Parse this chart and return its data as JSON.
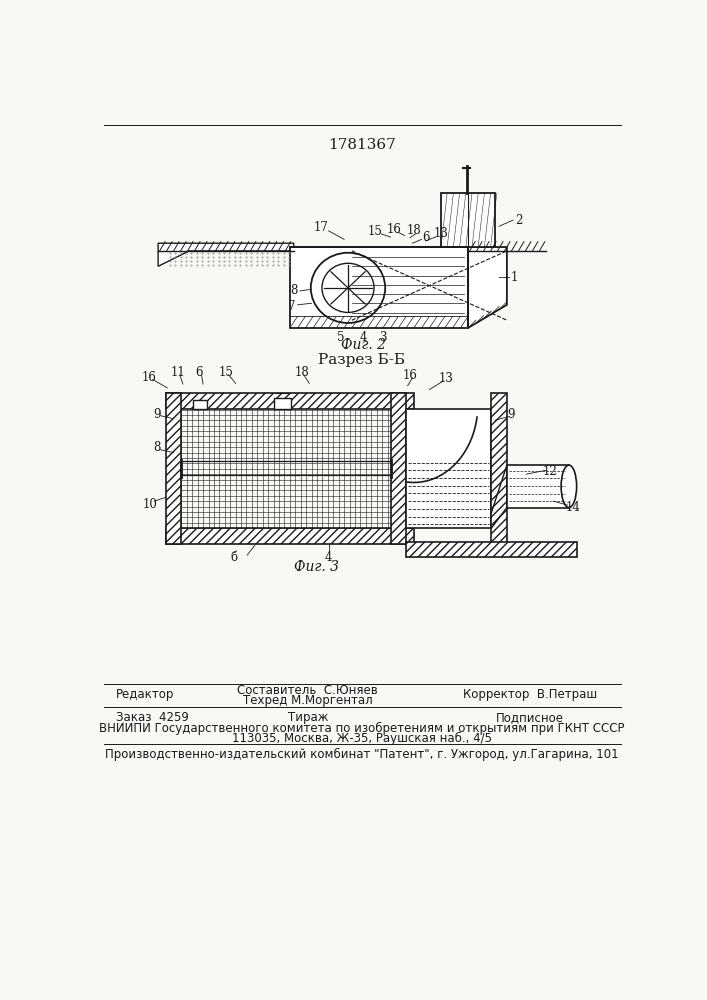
{
  "patent_number": "1781367",
  "bg_color": "#f8f8f5",
  "line_color": "#1a1a1a",
  "fig2_caption": "Фиг. 2",
  "fig3_caption": "Фиг. 3",
  "section_label": "Разрез Б-Б",
  "footer_line1_left": "Редактор",
  "footer_line1_center1": "Составитель  С.Юняев",
  "footer_line1_center2": "Техред М.Моргентал",
  "footer_line1_right": "Корректор  В.Петраш",
  "footer_line2_left": "Заказ  4259",
  "footer_line2_center": "Тираж",
  "footer_line2_right": "Подписное",
  "footer_line3": "ВНИИПИ Государственного комитета по изобретениям и открытиям при ГКНТ СССР",
  "footer_line4": "113035, Москва, Ж-35, Раушская наб., 4/5",
  "footer_line5": "Производственно-издательский комбинат \"Патент\", г. Ужгород, ул.Гагарина, 101"
}
